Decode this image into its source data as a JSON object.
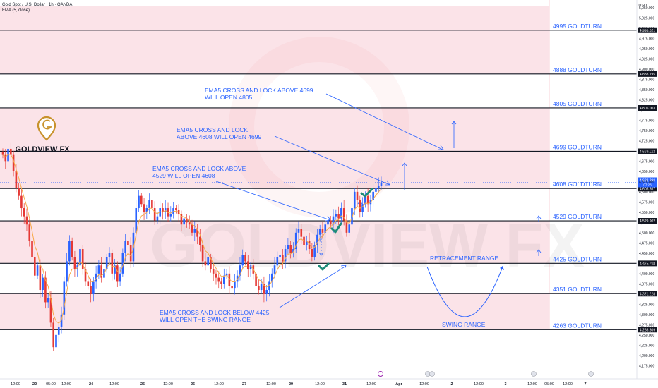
{
  "header": {
    "symbol_line": "Gold Spot / U.S. Dollar · 1h · OANDA",
    "indicator_line": "EMA (5, close)",
    "currency": "USD"
  },
  "logo": {
    "text": "GOLDVIEW FX",
    "watermark": "GOLDVIEW FX"
  },
  "colors": {
    "up": "#2962ff",
    "down": "#e53935",
    "ema": "#f7a94a",
    "band": "#fbe3e8",
    "annotation": "#2962ff",
    "tick": "#1e8c7a",
    "logo": "#c8922c"
  },
  "chart_data": {
    "type": "candlestick",
    "ylim": [
      4160,
      5055
    ],
    "y_ticks": [
      "5,050.000",
      "5,025.000",
      "5,000.000",
      "4,975.000",
      "4,950.000",
      "4,925.000",
      "4,900.000",
      "4,875.000",
      "4,850.000",
      "4,825.000",
      "4,800.000",
      "4,775.000",
      "4,750.000",
      "4,725.000",
      "4,700.000",
      "4,675.000",
      "4,650.000",
      "4,625.000",
      "4,600.000",
      "4,575.000",
      "4,550.000",
      "4,525.000",
      "4,500.000",
      "4,475.000",
      "4,450.000",
      "4,425.000",
      "4,400.000",
      "4,375.000",
      "4,350.000",
      "4,325.000",
      "4,300.000",
      "4,275.000",
      "4,250.000",
      "4,225.000",
      "4,200.000",
      "4,175.000"
    ],
    "x_labels": [
      "12:00",
      "22",
      "05:00",
      "12:00",
      "24",
      "12:00",
      "25",
      "12:00",
      "26",
      "12:00",
      "27",
      "12:00",
      "29",
      "12:00",
      "31",
      "12:00",
      "Apr",
      "12:00",
      "2",
      "12:00",
      "3",
      "12:00",
      "05:00",
      "12:00",
      "7"
    ],
    "levels": [
      {
        "label": "4995 GOLDTURN",
        "price": "4,995.021",
        "value": 4995
      },
      {
        "label": "4888 GOLDTURN",
        "price": "4,888.195",
        "value": 4888
      },
      {
        "label": "4805 GOLDTURN",
        "price": "4,805.003",
        "value": 4805
      },
      {
        "label": "4699 GOLDTURN",
        "price": "4,699.122",
        "value": 4699
      },
      {
        "label": "4608 GOLDTURN",
        "price": "4,608.367",
        "value": 4608
      },
      {
        "label": "4529 GOLDTURN",
        "price": "4,529.902",
        "value": 4529
      },
      {
        "label": "4425 GOLDTURN",
        "price": "4,425.298",
        "value": 4425
      },
      {
        "label": "4351 GOLDTURN",
        "price": "4,351.228",
        "value": 4351
      },
      {
        "label": "4263 GOLDTURN",
        "price": "4,263.309",
        "value": 4263
      }
    ],
    "current_price": {
      "value": 4623,
      "label": "4,623.290",
      "countdown": "07:28"
    },
    "bands": [
      [
        4888,
        5055
      ],
      [
        4699,
        4805
      ],
      [
        4608,
        4699
      ],
      [
        4425,
        4529
      ],
      [
        4263,
        4351
      ]
    ],
    "annotations": [
      {
        "lines": [
          "EMA5 CROSS AND LOCK ABOVE 4699",
          "WILL OPEN 4805"
        ]
      },
      {
        "lines": [
          "EMA5 CROSS AND LOCK",
          "ABOVE 4608 WILL OPEN 4699"
        ]
      },
      {
        "lines": [
          "EMA5 CROSS AND LOCK ABOVE",
          "4529 WILL OPEN 4608"
        ]
      },
      {
        "lines": [
          "EMA5 CROSS AND LOCK BELOW 4425",
          "WILL OPEN THE SWING RANGE"
        ]
      },
      {
        "lines": [
          "RETRACEMENT RANGE"
        ]
      },
      {
        "lines": [
          "SWING RANGE"
        ]
      }
    ],
    "close": [
      4690,
      4675,
      4705,
      4690,
      4650,
      4610,
      4590,
      4560,
      4540,
      4520,
      4480,
      4440,
      4395,
      4420,
      4360,
      4390,
      4330,
      4340,
      4280,
      4220,
      4250,
      4270,
      4300,
      4380,
      4430,
      4480,
      4440,
      4410,
      4420,
      4460,
      4410,
      4380,
      4370,
      4350,
      4380,
      4400,
      4420,
      4390,
      4410,
      4440,
      4450,
      4400,
      4420,
      4380,
      4400,
      4450,
      4480,
      4470,
      4430,
      4500,
      4560,
      4590,
      4570,
      4550,
      4560,
      4580,
      4560,
      4530,
      4540,
      4560,
      4550,
      4560,
      4540,
      4545,
      4560,
      4555,
      4545,
      4520,
      4535,
      4525,
      4520,
      4500,
      4510,
      4490,
      4470,
      4430,
      4420,
      4440,
      4410,
      4400,
      4390,
      4380,
      4375,
      4395,
      4400,
      4370,
      4365,
      4380,
      4395,
      4420,
      4445,
      4430,
      4410,
      4420,
      4400,
      4370,
      4360,
      4375,
      4350,
      4360,
      4380,
      4400,
      4420,
      4440,
      4445,
      4430,
      4460,
      4470,
      4450,
      4460,
      4500,
      4510,
      4490,
      4470,
      4480,
      4460,
      4440,
      4470,
      4495,
      4510,
      4500,
      4520,
      4530,
      4520,
      4540,
      4545,
      4535,
      4560,
      4530,
      4500,
      4520,
      4560,
      4600,
      4580,
      4550,
      4570,
      4590,
      4570,
      4580,
      4600,
      4610,
      4615,
      4623
    ]
  }
}
